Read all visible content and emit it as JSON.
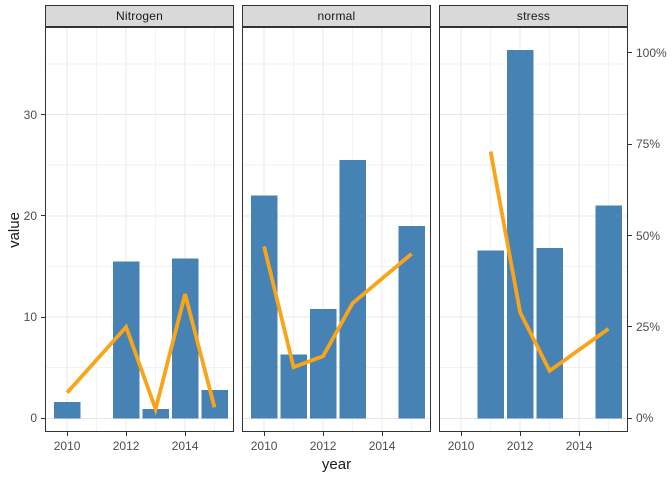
{
  "chart_data": {
    "type": "bar",
    "subtype": "faceted-bar-and-line-combo",
    "title": "",
    "x": {
      "title": "year",
      "ticks": [
        2010,
        2012,
        2014
      ],
      "lim": [
        2009.25,
        2015.66
      ]
    },
    "y_left": {
      "title": "value",
      "ticks": [
        0,
        10,
        20,
        30
      ],
      "lim": [
        -1.35,
        38.65
      ]
    },
    "y_right": {
      "ticks": [
        {
          "value": 0,
          "label": "0%"
        },
        {
          "value": 25,
          "label": "25%"
        },
        {
          "value": 50,
          "label": "50%"
        },
        {
          "value": 75,
          "label": "75%"
        },
        {
          "value": 100,
          "label": "100%"
        }
      ],
      "pct_to_value": 0.361
    },
    "grid": {
      "major_values": [
        0,
        10,
        20,
        30
      ],
      "minor_values": [
        5,
        15,
        25,
        35
      ],
      "major_years": [
        2010,
        2012,
        2014
      ],
      "minor_years": [
        2011,
        2013,
        2015
      ]
    },
    "bar_width_years": 0.9,
    "legend": "none",
    "facets": [
      {
        "label": "Nitrogen",
        "bars": [
          {
            "year": 2010,
            "value": 1.6
          },
          {
            "year": 2012,
            "value": 15.5
          },
          {
            "year": 2013,
            "value": 0.9
          },
          {
            "year": 2014,
            "value": 15.8
          },
          {
            "year": 2015,
            "value": 2.8
          }
        ],
        "line_pct": [
          {
            "year": 2010,
            "pct": 7
          },
          {
            "year": 2012,
            "pct": 25
          },
          {
            "year": 2013,
            "pct": 2.5
          },
          {
            "year": 2014,
            "pct": 34
          },
          {
            "year": 2015,
            "pct": 3
          }
        ]
      },
      {
        "label": "normal",
        "bars": [
          {
            "year": 2010,
            "value": 22
          },
          {
            "year": 2011,
            "value": 6.3
          },
          {
            "year": 2012,
            "value": 10.8
          },
          {
            "year": 2013,
            "value": 25.5
          },
          {
            "year": 2015,
            "value": 19
          }
        ],
        "line_pct": [
          {
            "year": 2010,
            "pct": 47
          },
          {
            "year": 2011,
            "pct": 14
          },
          {
            "year": 2012,
            "pct": 17
          },
          {
            "year": 2013,
            "pct": 31.5
          },
          {
            "year": 2015,
            "pct": 45
          }
        ]
      },
      {
        "label": "stress",
        "bars": [
          {
            "year": 2011,
            "value": 16.6
          },
          {
            "year": 2012,
            "value": 36.4
          },
          {
            "year": 2013,
            "value": 16.8
          },
          {
            "year": 2015,
            "value": 21
          }
        ],
        "line_pct": [
          {
            "year": 2011,
            "pct": 73
          },
          {
            "year": 2012,
            "pct": 29
          },
          {
            "year": 2013,
            "pct": 13
          },
          {
            "year": 2015,
            "pct": 24.5
          }
        ]
      }
    ],
    "colors": {
      "bar": "#4682B4",
      "line": "#FAA519",
      "strip_bg": "#D9D9D9",
      "border": "#333333",
      "grid_major": "#E8E8E8",
      "grid_minor": "#F2F2F2",
      "tick_label": "#4D4D4D",
      "axis_title": "#1A1A1A",
      "strip_text": "#1A1A1A"
    }
  }
}
